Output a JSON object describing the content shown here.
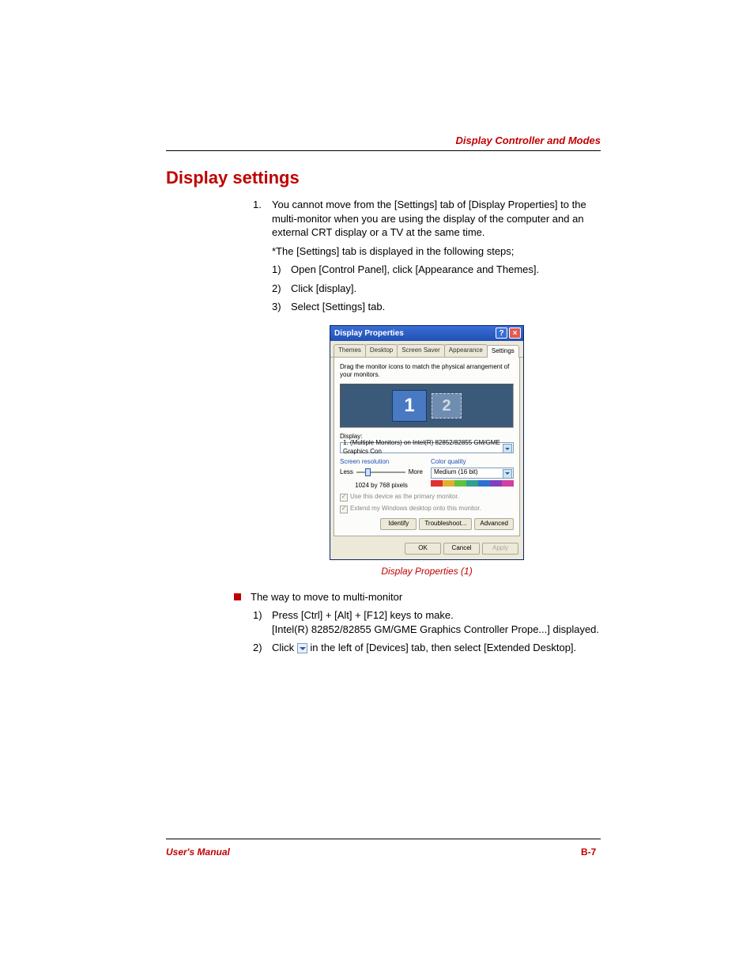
{
  "header": {
    "section": "Display Controller and Modes"
  },
  "heading": "Display settings",
  "para1_num": "1.",
  "para1": "You cannot move from the [Settings] tab of [Display Properties] to the multi-monitor when you are using the display of the computer and an external CRT display or a TV at the same time.",
  "note": "*The [Settings] tab is displayed in the following steps;",
  "steps_a": {
    "s1n": "1)",
    "s1": "Open [Control Panel], click [Appearance and Themes].",
    "s2n": "2)",
    "s2": "Click [display].",
    "s3n": "3)",
    "s3": "Select [Settings] tab."
  },
  "caption": "Display Properties (1)",
  "bullet_text": "The way to move to multi-monitor",
  "steps_b": {
    "s1n": "1)",
    "s1a": "Press [Ctrl] + [Alt] + [F12] keys to make.",
    "s1b": "[Intel(R) 82852/82855 GM/GME Graphics Controller Prope...] displayed.",
    "s2n": "2)",
    "s2a": "Click ",
    "s2b": " in the left of [Devices] tab, then select [Extended Desktop]."
  },
  "dialog": {
    "title": "Display Properties",
    "tabs": [
      "Themes",
      "Desktop",
      "Screen Saver",
      "Appearance",
      "Settings"
    ],
    "active_tab": 4,
    "instruction": "Drag the monitor icons to match the physical arrangement of your monitors.",
    "mon1": "1",
    "mon2": "2",
    "display_label": "Display:",
    "display_value": "1. (Multiple Monitors) on Intel(R) 82852/82855 GM/GME Graphics Con",
    "res_label": "Screen resolution",
    "less": "Less",
    "more": "More",
    "res_value": "1024 by 768 pixels",
    "cq_label": "Color quality",
    "cq_value": "Medium (16 bit)",
    "cq_colors": [
      "#e03030",
      "#e0b030",
      "#60c040",
      "#30a090",
      "#3070d0",
      "#8040c0",
      "#d040a0"
    ],
    "chk1": "Use this device as the primary monitor.",
    "chk2": "Extend my Windows desktop onto this monitor.",
    "btn_identify": "Identify",
    "btn_troubleshoot": "Troubleshoot...",
    "btn_advanced": "Advanced",
    "btn_ok": "OK",
    "btn_cancel": "Cancel",
    "btn_apply": "Apply"
  },
  "footer": {
    "left": "User's Manual",
    "right": "B-7"
  }
}
